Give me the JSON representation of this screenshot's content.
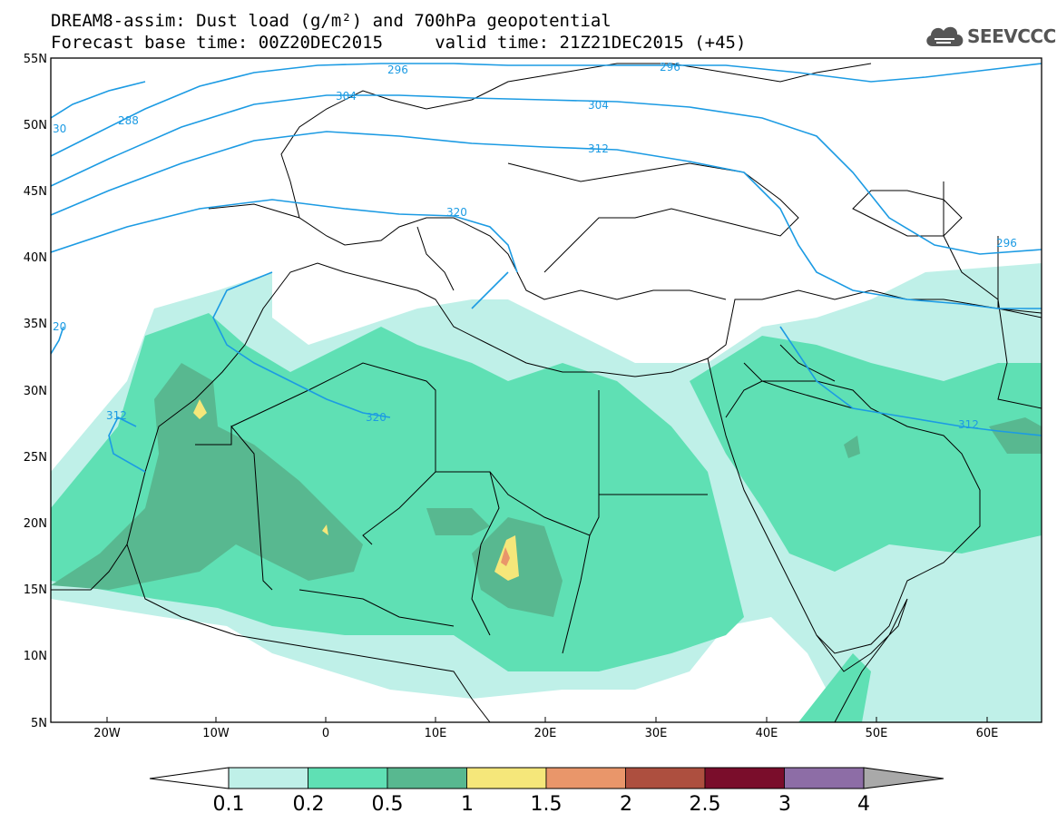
{
  "header": {
    "title_line1": "DREAM8-assim: Dust load (g/m²) and 700hPa geopotential",
    "title_line2": "Forecast base time: 00Z20DEC2015     valid time: 21Z21DEC2015 (+45)",
    "logo_text": "SEEVCCC"
  },
  "map": {
    "lon_ticks": [
      "20W",
      "10W",
      "0",
      "10E",
      "20E",
      "30E",
      "40E",
      "50E",
      "60E"
    ],
    "lat_ticks": [
      "55N",
      "50N",
      "45N",
      "40N",
      "35N",
      "30N",
      "25N",
      "20N",
      "15N",
      "10N",
      "5N"
    ],
    "contour_labels": [
      "296",
      "296",
      "288",
      "30",
      "304",
      "304",
      "312",
      "320",
      "320",
      "312",
      "312",
      "296",
      "20"
    ]
  },
  "colorbar": {
    "tick_labels": [
      "0.1",
      "0.2",
      "0.5",
      "1",
      "1.5",
      "2",
      "2.5",
      "3",
      "4"
    ],
    "colors": [
      "#ffffff",
      "#bff0e8",
      "#5fe0b4",
      "#58b890",
      "#f5e77a",
      "#e9966a",
      "#ad4f3f",
      "#7a0d2b",
      "#8d6da6",
      "#a9a9a9"
    ]
  }
}
